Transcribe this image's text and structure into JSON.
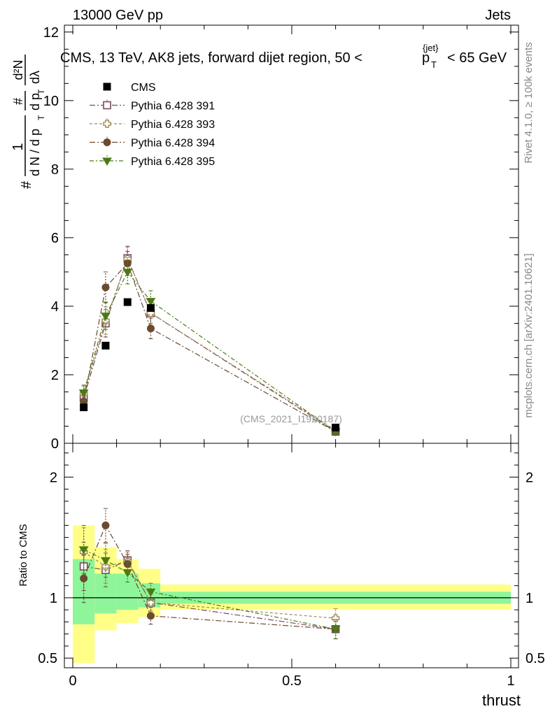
{
  "header": {
    "energy_label": "13000 GeV pp",
    "category_label": "Jets"
  },
  "side_labels": {
    "rivet": "Rivet 4.1.0, ≥ 100k events",
    "source": "mcplots.cern.ch [arXiv:2401.10621]"
  },
  "chart_data": {
    "type": "scatter",
    "title": "CMS, 13 TeV, AK8 jets, forward dijet region, 50 < p_T^{jet} < 65 GeV",
    "title_parts": {
      "prefix": "CMS, 13 TeV, AK8 jets, forward dijet region, 50 <",
      "sym": "p",
      "sub": "T",
      "sup": "{jet}",
      "suffix": "< 65 GeV"
    },
    "watermark": "(CMS_2021_I1920187)",
    "xlabel": "thrust",
    "ylabel_parts": {
      "hash": "#",
      "frac1_num": "1",
      "frac1_den": "d N / d p",
      "frac2_num": "#",
      "frac2_den": "d p",
      "frac3_num": "d²N",
      "frac3_den": "dλ",
      "sub": "T"
    },
    "ratio_ylabel": "Ratio to CMS",
    "xlim": [
      0,
      1
    ],
    "ylim": [
      0,
      12.2
    ],
    "ratio_ylim": [
      0.42,
      2.28
    ],
    "xticks": [
      {
        "v": 0,
        "label": "0"
      },
      {
        "v": 0.5,
        "label": "0.5"
      },
      {
        "v": 1,
        "label": "1"
      }
    ],
    "yticks": [
      {
        "v": 0,
        "label": "0"
      },
      {
        "v": 2,
        "label": "2"
      },
      {
        "v": 4,
        "label": "4"
      },
      {
        "v": 6,
        "label": "6"
      },
      {
        "v": 8,
        "label": "8"
      },
      {
        "v": 10,
        "label": "10"
      },
      {
        "v": 12,
        "label": "12"
      }
    ],
    "ratio_yticks": [
      {
        "v": 0.5,
        "label": "0.5"
      },
      {
        "v": 1,
        "label": "1"
      },
      {
        "v": 2,
        "label": "2"
      }
    ],
    "bins": [
      [
        0.0,
        0.05
      ],
      [
        0.05,
        0.1
      ],
      [
        0.1,
        0.15
      ],
      [
        0.15,
        0.2
      ],
      [
        0.2,
        1.0
      ]
    ],
    "data": {
      "name": "CMS",
      "x": [
        0.025,
        0.075,
        0.125,
        0.178,
        0.6
      ],
      "y": [
        1.05,
        2.85,
        4.12,
        3.95,
        0.46
      ],
      "yerr": [
        0.04,
        0.06,
        0.07,
        0.07,
        0.02
      ],
      "ratio_band_green": [
        [
          0.78,
          1.32
        ],
        [
          0.87,
          1.2
        ],
        [
          0.9,
          1.2
        ],
        [
          0.92,
          1.12
        ],
        [
          0.95,
          1.05
        ]
      ],
      "ratio_band_yellow": [
        [
          0.46,
          1.6
        ],
        [
          0.73,
          1.42
        ],
        [
          0.79,
          1.32
        ],
        [
          0.84,
          1.24
        ],
        [
          0.9,
          1.11
        ]
      ]
    },
    "series": [
      {
        "name": "Pythia 6.428 391",
        "color": "#7a4a5e",
        "marker": "open-square",
        "dash": "8,3,2,3",
        "y": [
          1.32,
          3.5,
          5.4,
          3.8,
          0.34
        ],
        "yerr": [
          0.22,
          0.4,
          0.35,
          0.3,
          0.04
        ],
        "ratio": [
          1.26,
          1.23,
          1.31,
          0.96,
          0.74
        ],
        "ratio_err": [
          0.2,
          0.14,
          0.08,
          0.07,
          0.08
        ]
      },
      {
        "name": "Pythia 6.428 393",
        "color": "#a08a58",
        "marker": "open-cross",
        "dash": "4,3",
        "y": [
          1.45,
          3.58,
          5.38,
          3.8,
          0.38
        ],
        "yerr": [
          0.22,
          0.4,
          0.35,
          0.3,
          0.04
        ],
        "ratio": [
          1.38,
          1.26,
          1.3,
          0.96,
          0.83
        ],
        "ratio_err": [
          0.2,
          0.14,
          0.08,
          0.07,
          0.08
        ]
      },
      {
        "name": "Pythia 6.428 394",
        "color": "#6b4a30",
        "marker": "filled-circle",
        "dash": "8,3,2,3",
        "y": [
          1.22,
          4.55,
          5.25,
          3.35,
          0.34
        ],
        "yerr": [
          0.22,
          0.45,
          0.35,
          0.3,
          0.04
        ],
        "ratio": [
          1.16,
          1.6,
          1.28,
          0.85,
          0.74
        ],
        "ratio_err": [
          0.2,
          0.14,
          0.08,
          0.07,
          0.08
        ]
      },
      {
        "name": "Pythia 6.428 395",
        "color": "#4a7a14",
        "marker": "filled-triangle-down",
        "dash": "6,3,2,3",
        "y": [
          1.48,
          3.72,
          5.0,
          4.15,
          0.34
        ],
        "yerr": [
          0.22,
          0.4,
          0.35,
          0.3,
          0.04
        ],
        "ratio": [
          1.4,
          1.31,
          1.21,
          1.05,
          0.74
        ],
        "ratio_err": [
          0.2,
          0.14,
          0.08,
          0.07,
          0.08
        ]
      }
    ]
  }
}
